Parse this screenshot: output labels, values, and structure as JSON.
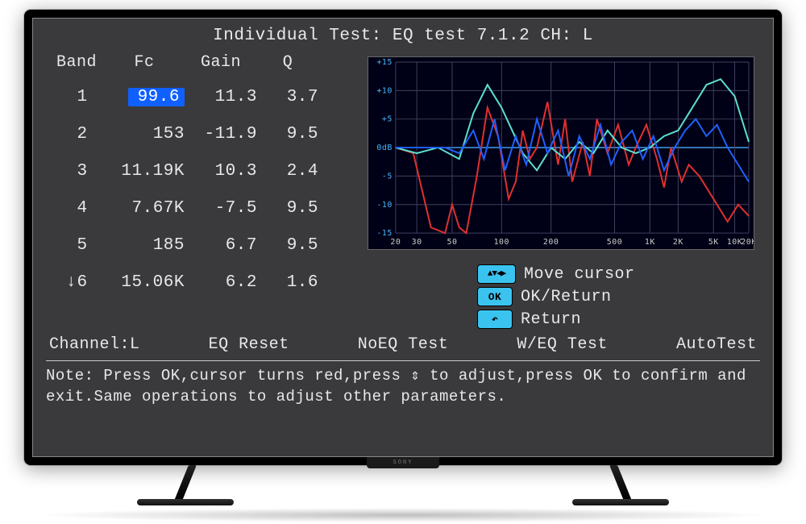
{
  "title": "Individual Test: EQ test  7.1.2 CH: L",
  "table": {
    "headers": {
      "band": "Band",
      "fc": "Fc",
      "gain": "Gain",
      "q": "Q"
    },
    "rows": [
      {
        "band": "1",
        "fc": "99.6",
        "gain": "11.3",
        "q": "3.7",
        "scroll": ""
      },
      {
        "band": "2",
        "fc": "153",
        "gain": "-11.9",
        "q": "9.5",
        "scroll": ""
      },
      {
        "band": "3",
        "fc": "11.19K",
        "gain": "10.3",
        "q": "2.4",
        "scroll": ""
      },
      {
        "band": "4",
        "fc": "7.67K",
        "gain": "-7.5",
        "q": "9.5",
        "scroll": ""
      },
      {
        "band": "5",
        "fc": "185",
        "gain": "6.7",
        "q": "9.5",
        "scroll": ""
      },
      {
        "band": "6",
        "fc": "15.06K",
        "gain": "6.2",
        "q": "1.6",
        "scroll": "↓"
      }
    ],
    "selected": {
      "row": 0,
      "col": "fc"
    }
  },
  "chart": {
    "background": "#000016",
    "grid_color": "#404060",
    "zero_line_color": "#4aa8ff",
    "y_ticks": [
      "+15",
      "+10",
      "+5",
      "0dB",
      "-5",
      "-10",
      "-15"
    ],
    "x_ticks": [
      "20",
      "30",
      "50",
      "100",
      "200",
      "500",
      "1K",
      "2K",
      "5K",
      "10K",
      "20K"
    ],
    "y_label_color": "#49b6ff",
    "series": [
      {
        "name": "red",
        "color": "#e03030",
        "width": 2,
        "points": [
          [
            0,
            0
          ],
          [
            5,
            -1
          ],
          [
            10,
            -14
          ],
          [
            14,
            -15
          ],
          [
            16,
            -10
          ],
          [
            18,
            -14
          ],
          [
            20,
            -15
          ],
          [
            23,
            -5
          ],
          [
            26,
            7
          ],
          [
            29,
            2
          ],
          [
            32,
            -9
          ],
          [
            34,
            -6
          ],
          [
            36,
            3
          ],
          [
            38,
            -2
          ],
          [
            40,
            0
          ],
          [
            43,
            8
          ],
          [
            46,
            -3
          ],
          [
            48,
            5
          ],
          [
            50,
            -6
          ],
          [
            53,
            1
          ],
          [
            55,
            -5
          ],
          [
            57,
            5
          ],
          [
            60,
            -1
          ],
          [
            63,
            4
          ],
          [
            66,
            -3
          ],
          [
            68,
            0
          ],
          [
            71,
            4
          ],
          [
            74,
            -2
          ],
          [
            76,
            -7
          ],
          [
            78,
            0
          ],
          [
            81,
            -6
          ],
          [
            83,
            -3
          ],
          [
            86,
            -5
          ],
          [
            88,
            -7
          ],
          [
            91,
            -10
          ],
          [
            94,
            -13
          ],
          [
            97,
            -10
          ],
          [
            100,
            -12
          ]
        ]
      },
      {
        "name": "teal",
        "color": "#5de0d0",
        "width": 2,
        "points": [
          [
            0,
            0
          ],
          [
            6,
            -1
          ],
          [
            12,
            0
          ],
          [
            18,
            -2
          ],
          [
            22,
            6
          ],
          [
            26,
            11
          ],
          [
            30,
            7
          ],
          [
            33,
            3
          ],
          [
            36,
            -1
          ],
          [
            40,
            -4
          ],
          [
            44,
            0
          ],
          [
            48,
            -2
          ],
          [
            52,
            1
          ],
          [
            56,
            -1
          ],
          [
            60,
            3
          ],
          [
            64,
            0
          ],
          [
            68,
            -1
          ],
          [
            72,
            0
          ],
          [
            76,
            2
          ],
          [
            80,
            3
          ],
          [
            84,
            7
          ],
          [
            88,
            11
          ],
          [
            92,
            12
          ],
          [
            96,
            9
          ],
          [
            100,
            1
          ]
        ]
      },
      {
        "name": "blue",
        "color": "#2060ff",
        "width": 2,
        "points": [
          [
            0,
            0
          ],
          [
            8,
            0
          ],
          [
            14,
            0
          ],
          [
            18,
            -1
          ],
          [
            22,
            3
          ],
          [
            25,
            -2
          ],
          [
            28,
            5
          ],
          [
            31,
            -4
          ],
          [
            34,
            2
          ],
          [
            37,
            -3
          ],
          [
            40,
            5
          ],
          [
            43,
            -1
          ],
          [
            46,
            3
          ],
          [
            49,
            -5
          ],
          [
            52,
            2
          ],
          [
            55,
            -2
          ],
          [
            58,
            4
          ],
          [
            61,
            -3
          ],
          [
            64,
            1
          ],
          [
            67,
            3
          ],
          [
            70,
            -2
          ],
          [
            73,
            2
          ],
          [
            76,
            -4
          ],
          [
            79,
            0
          ],
          [
            82,
            3
          ],
          [
            85,
            5
          ],
          [
            88,
            2
          ],
          [
            91,
            4
          ],
          [
            94,
            0
          ],
          [
            97,
            -3
          ],
          [
            100,
            -6
          ]
        ]
      }
    ],
    "ylim": [
      -15,
      15
    ]
  },
  "legend": {
    "move": "Move cursor",
    "ok": "OK/Return",
    "return": "Return"
  },
  "bottom_menu": {
    "channel": "Channel:L",
    "eq_reset": "EQ Reset",
    "noeq_test": "NoEQ Test",
    "weq_test": "W/EQ Test",
    "autotest": "AutoTest"
  },
  "note": "Note: Press OK,cursor turns red,press ⇕ to adjust,press OK to confirm and exit.Same operations to adjust other parameters.",
  "brand": "SONY"
}
